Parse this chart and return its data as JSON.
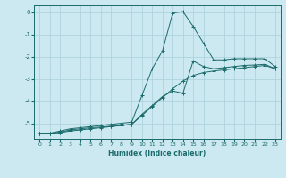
{
  "title": "",
  "xlabel": "Humidex (Indice chaleur)",
  "xlim": [
    -0.5,
    23.5
  ],
  "ylim": [
    -5.7,
    0.3
  ],
  "bg_color": "#cce8f0",
  "grid_color": "#aacfda",
  "line_color": "#1a6b6b",
  "x_ticks": [
    0,
    1,
    2,
    3,
    4,
    5,
    6,
    7,
    8,
    9,
    10,
    11,
    12,
    13,
    14,
    15,
    16,
    17,
    18,
    19,
    20,
    21,
    22,
    23
  ],
  "y_ticks": [
    0,
    -1,
    -2,
    -3,
    -4,
    -5
  ],
  "series": [
    {
      "x": [
        0,
        1,
        2,
        3,
        4,
        5,
        6,
        7,
        8,
        9,
        10,
        11,
        12,
        13,
        14,
        15,
        16,
        17,
        18,
        19,
        20,
        21,
        22,
        23
      ],
      "y": [
        -5.45,
        -5.45,
        -5.35,
        -5.25,
        -5.2,
        -5.15,
        -5.1,
        -5.05,
        -5.0,
        -4.95,
        -3.75,
        -2.55,
        -1.75,
        -0.05,
        0.02,
        -0.65,
        -1.4,
        -2.15,
        -2.15,
        -2.1,
        -2.1,
        -2.1,
        -2.1,
        -2.45
      ]
    },
    {
      "x": [
        0,
        1,
        2,
        3,
        4,
        5,
        6,
        7,
        8,
        9,
        10,
        11,
        12,
        13,
        14,
        15,
        16,
        17,
        18,
        19,
        20,
        21,
        22,
        23
      ],
      "y": [
        -5.45,
        -5.45,
        -5.4,
        -5.3,
        -5.25,
        -5.2,
        -5.17,
        -5.13,
        -5.1,
        -5.05,
        -4.6,
        -4.2,
        -3.8,
        -3.55,
        -3.65,
        -2.2,
        -2.45,
        -2.55,
        -2.5,
        -2.45,
        -2.4,
        -2.38,
        -2.35,
        -2.55
      ]
    },
    {
      "x": [
        0,
        1,
        2,
        3,
        4,
        5,
        6,
        7,
        8,
        9,
        10,
        11,
        12,
        13,
        14,
        15,
        16,
        17,
        18,
        19,
        20,
        21,
        22,
        23
      ],
      "y": [
        -5.45,
        -5.45,
        -5.42,
        -5.35,
        -5.3,
        -5.25,
        -5.2,
        -5.15,
        -5.1,
        -5.05,
        -4.65,
        -4.25,
        -3.85,
        -3.45,
        -3.1,
        -2.85,
        -2.72,
        -2.65,
        -2.6,
        -2.55,
        -2.5,
        -2.45,
        -2.4,
        -2.55
      ]
    }
  ]
}
